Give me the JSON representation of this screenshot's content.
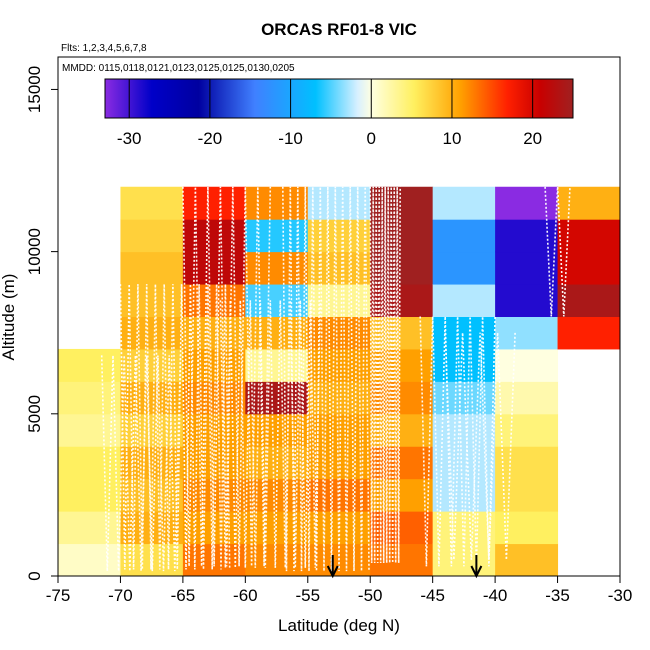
{
  "chart_data": {
    "type": "heatmap",
    "title": "ORCAS RF01-8 VIC",
    "subtitle": "Flts: 1,2,3,4,5,6,7,8",
    "annotation": "MMDD: 0115,0118,0121,0123,0125,0125,0130,0205",
    "xlabel": "Latitude (deg N)",
    "ylabel": "Altitude (m)",
    "xlim": [
      -75,
      -30
    ],
    "ylim": [
      0,
      16000
    ],
    "xticks": [
      -75,
      -70,
      -65,
      -60,
      -55,
      -50,
      -45,
      -40,
      -35,
      -30
    ],
    "yticks": [
      0,
      5000,
      10000,
      15000
    ],
    "xtick_labels": [
      "-75",
      "-70",
      "-65",
      "-60",
      "-55",
      "-50",
      "-45",
      "-40",
      "-35",
      "-30"
    ],
    "ytick_labels": [
      "0",
      "5000",
      "10000",
      "15000"
    ],
    "colorbar": {
      "range": [
        -33,
        25
      ],
      "ticks": [
        -30,
        -20,
        -10,
        0,
        10,
        20
      ],
      "tick_labels": [
        "-30",
        "-20",
        "-10",
        "0",
        "10",
        "20"
      ]
    },
    "bin_width_deg": 5,
    "bin_height_m": 1000,
    "columns": [
      {
        "lat0": -75,
        "lat1": -70,
        "alt0": 0,
        "values": [
          1,
          3,
          5,
          5,
          3,
          4,
          5
        ]
      },
      {
        "lat0": -70,
        "lat1": -65,
        "alt0": 0,
        "values": [
          6,
          9,
          8,
          9,
          7,
          9,
          7,
          9,
          8,
          8,
          7,
          6
        ]
      },
      {
        "lat0": -65,
        "lat1": -60,
        "alt0": 0,
        "values": [
          12,
          10,
          11,
          10,
          10,
          11,
          10,
          9,
          12,
          22,
          22,
          16
        ]
      },
      {
        "lat0": -60,
        "lat1": -55,
        "alt0": 0,
        "values": [
          11,
          10,
          11,
          9,
          10,
          24,
          3,
          9,
          -6,
          11,
          -7,
          11
        ]
      },
      {
        "lat0": -55,
        "lat1": -50,
        "alt0": 0,
        "values": [
          11,
          10,
          12,
          10,
          10,
          9,
          10,
          11,
          3,
          8,
          7,
          -3
        ]
      },
      {
        "lat0": -50,
        "lat1": -45,
        "alt0": 0,
        "values": [
          12,
          13,
          10,
          12,
          9,
          11,
          10,
          8,
          24,
          27,
          27,
          27
        ]
      },
      {
        "lat0": -45,
        "lat1": -40,
        "alt0": 0,
        "values": [
          4,
          4,
          -3,
          -3,
          -3,
          -5,
          -8,
          -8,
          -3,
          -12,
          -12,
          -3
        ]
      },
      {
        "lat0": -40,
        "lat1": -35,
        "alt0": 0,
        "values": [
          8,
          5,
          6,
          6,
          4,
          2,
          0,
          -4,
          -30,
          -30,
          -30,
          -36
        ]
      },
      {
        "lat0": -35,
        "lat1": -30,
        "alt0": 7000,
        "values": [
          16,
          24,
          20,
          20,
          9
        ]
      }
    ],
    "arrows_lat": [
      -53,
      -41.5
    ]
  }
}
